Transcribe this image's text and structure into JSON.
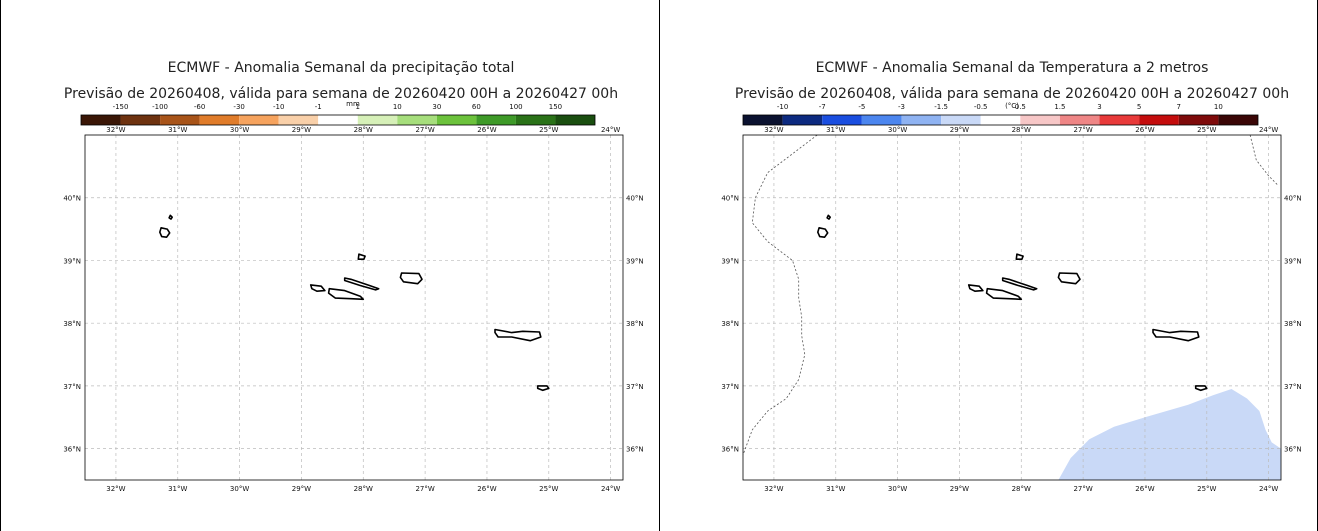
{
  "panels": [
    {
      "id": "precip",
      "title": "ECMWF - Anomalia Semanal da precipitação total",
      "subtitle": "Previsão de 20260408, válida para semana de 20260420 00H a 20260427 00h",
      "unit": "mm",
      "colorbar": {
        "ticks": [
          "-150",
          "-100",
          "-60",
          "-30",
          "-10",
          "-1",
          "1",
          "10",
          "30",
          "60",
          "100",
          "150"
        ],
        "colors": [
          "#3a1606",
          "#6e3210",
          "#a85419",
          "#e07c2a",
          "#f6a35e",
          "#f9d0a9",
          "#ffffff",
          "#d6f0b8",
          "#a6de7c",
          "#6cc23c",
          "#3e9a28",
          "#2a7218",
          "#1a4e10"
        ]
      },
      "shading": "none",
      "show_dashed_boundary": false
    },
    {
      "id": "temp2m",
      "title": "ECMWF - Anomalia Semanal da Temperatura a 2 metros",
      "subtitle": "Previsão de 20260408, válida para semana de 20260420 00H a 20260427 00h",
      "unit": "(°C)",
      "colorbar": {
        "ticks": [
          "-10",
          "-7",
          "-5",
          "-3",
          "-1.5",
          "-0.5",
          "0.5",
          "1.5",
          "3",
          "5",
          "7",
          "10"
        ],
        "colors": [
          "#0b1230",
          "#0c2a80",
          "#1a4ee0",
          "#4c86ef",
          "#8fb3f2",
          "#c9d9f7",
          "#ffffff",
          "#f7c7c7",
          "#ef8686",
          "#e83a3a",
          "#c40c0c",
          "#7e0a0a",
          "#3a0606"
        ]
      },
      "shading": "light-blue region (southeast)",
      "shading_color": "#c9d9f7",
      "show_dashed_boundary": true
    }
  ],
  "axes": {
    "lon_labels": [
      "32°W",
      "31°W",
      "30°W",
      "29°W",
      "28°W",
      "27°W",
      "26°W",
      "25°W",
      "24°W"
    ],
    "lat_labels": [
      "40°N",
      "39°N",
      "38°N",
      "37°N",
      "36°N"
    ],
    "lon_range": [
      -32.5,
      -23.8
    ],
    "lat_range": [
      35.5,
      41.0
    ],
    "grid": true
  }
}
